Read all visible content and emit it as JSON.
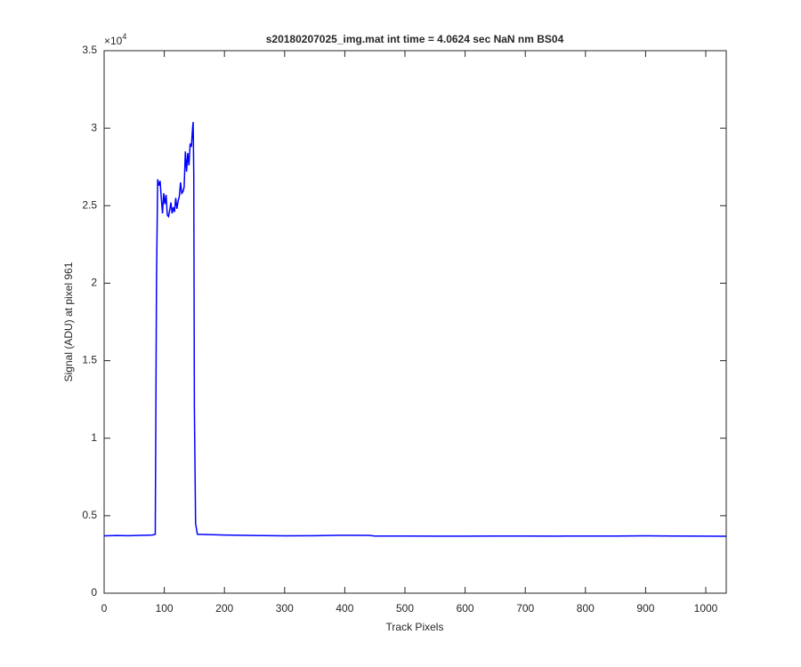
{
  "chart_data": {
    "type": "line",
    "title": "s20180207025_img.mat int time = 4.0624 sec  NaN nm BS04",
    "x_label": "Track Pixels",
    "y_label": "Signal (ADU) at pixel 961",
    "y_multiplier": {
      "base": "×10",
      "exponent": "4"
    },
    "x": [
      0,
      20,
      40,
      60,
      80,
      85,
      87,
      89,
      91,
      93,
      95,
      97,
      99,
      101,
      103,
      105,
      107,
      109,
      111,
      113,
      115,
      117,
      119,
      121,
      123,
      125,
      127,
      129,
      131,
      133,
      135,
      137,
      139,
      141,
      143,
      145,
      147,
      148,
      149,
      150,
      152,
      155,
      200,
      250,
      300,
      350,
      400,
      440,
      450,
      500,
      550,
      600,
      650,
      700,
      750,
      800,
      850,
      900,
      950,
      1000,
      1034
    ],
    "series": [
      {
        "color": "#0000ff",
        "values": [
          3700,
          3720,
          3710,
          3730,
          3750,
          3800,
          20000,
          26700,
          26300,
          26600,
          25500,
          24500,
          25800,
          25100,
          25700,
          24400,
          24300,
          24700,
          25200,
          24500,
          24900,
          24600,
          25500,
          24800,
          25300,
          25600,
          26500,
          25800,
          25900,
          26200,
          28500,
          27200,
          28400,
          27600,
          29000,
          28800,
          30000,
          30400,
          27000,
          12000,
          4500,
          3800,
          3750,
          3720,
          3700,
          3710,
          3740,
          3730,
          3690,
          3690,
          3680,
          3680,
          3690,
          3690,
          3680,
          3690,
          3690,
          3700,
          3690,
          3680,
          3670
        ]
      }
    ],
    "xlim": [
      0,
      1034
    ],
    "xticks": [
      0,
      100,
      200,
      300,
      400,
      500,
      600,
      700,
      800,
      900,
      1000
    ],
    "ylim": [
      0,
      35000
    ],
    "yticks": [
      0,
      {
        "value": 5000,
        "label": "0.5"
      },
      {
        "value": 10000,
        "label": "1"
      },
      {
        "value": 15000,
        "label": "1.5"
      },
      {
        "value": 20000,
        "label": "2"
      },
      {
        "value": 25000,
        "label": "2.5"
      },
      {
        "value": 30000,
        "label": "3"
      },
      {
        "value": 35000,
        "label": "3.5"
      }
    ],
    "grid": false
  }
}
